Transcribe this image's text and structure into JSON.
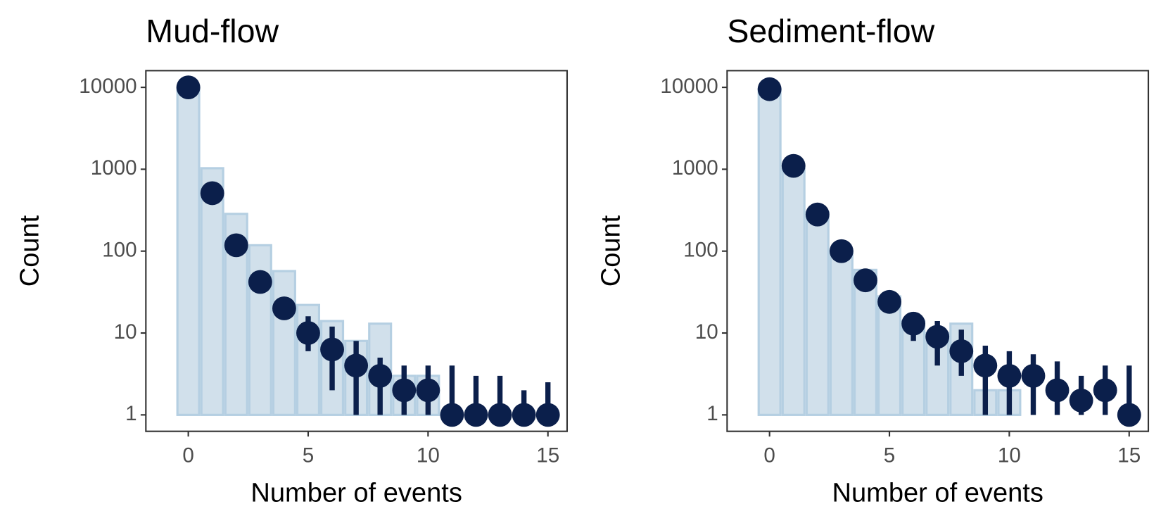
{
  "chart_data": [
    {
      "type": "bar_point",
      "title": "Mud-flow",
      "x_label": "Number of events",
      "y_label": "Count",
      "x": [
        0,
        1,
        2,
        3,
        4,
        5,
        6,
        7,
        8,
        9,
        10,
        11,
        12,
        13,
        14,
        15
      ],
      "bars": [
        10000,
        1030,
        285,
        118,
        57,
        22,
        14,
        8,
        13,
        3,
        3,
        1,
        1,
        1,
        1,
        1
      ],
      "points": [
        10000,
        510,
        118,
        42,
        20,
        10,
        6.3,
        4,
        3,
        2,
        2,
        1,
        1,
        1,
        1,
        1
      ],
      "lower": [
        9800,
        480,
        105,
        35,
        15,
        6,
        2,
        1,
        1,
        1,
        1,
        1,
        1,
        1,
        1,
        1
      ],
      "upper": [
        10200,
        540,
        130,
        50,
        26,
        16,
        12,
        8,
        5,
        4,
        4,
        4,
        3,
        3,
        2,
        2.5
      ],
      "bar_color": "#d1e0eb",
      "bar_edge": "#b5cfe2",
      "point_color": "#0b1f4b",
      "log_y": true,
      "xlim": [
        -1.77,
        15.8
      ],
      "ylim": [
        0.63,
        16000
      ],
      "xticks": [
        0,
        5,
        10,
        15
      ],
      "yticks": [
        1,
        10,
        100,
        1000,
        10000
      ]
    },
    {
      "type": "bar_point",
      "title": "Sediment-flow",
      "x_label": "Number of events",
      "y_label": "Count",
      "x": [
        0,
        1,
        2,
        3,
        4,
        5,
        6,
        7,
        8,
        9,
        10,
        11,
        12,
        13,
        14,
        15
      ],
      "bars": [
        9500,
        1000,
        300,
        100,
        59,
        28,
        14,
        10,
        13,
        2,
        2,
        1,
        1,
        1,
        1,
        1
      ],
      "points": [
        9500,
        1100,
        280,
        100,
        44,
        24,
        13,
        9,
        6,
        4,
        3,
        3,
        2,
        1.5,
        2,
        1
      ],
      "lower": [
        9300,
        1050,
        260,
        90,
        38,
        19,
        8,
        4,
        3,
        1,
        1,
        1,
        1,
        1,
        1,
        1
      ],
      "upper": [
        9700,
        1150,
        300,
        110,
        50,
        30,
        18,
        14,
        11,
        7,
        6,
        5.5,
        4.5,
        3,
        4,
        4
      ],
      "bar_color": "#d1e0eb",
      "bar_edge": "#b5cfe2",
      "point_color": "#0b1f4b",
      "log_y": true,
      "xlim": [
        -1.77,
        15.8
      ],
      "ylim": [
        0.63,
        16000
      ],
      "xticks": [
        0,
        5,
        10,
        15
      ],
      "yticks": [
        1,
        10,
        100,
        1000,
        10000
      ]
    }
  ]
}
